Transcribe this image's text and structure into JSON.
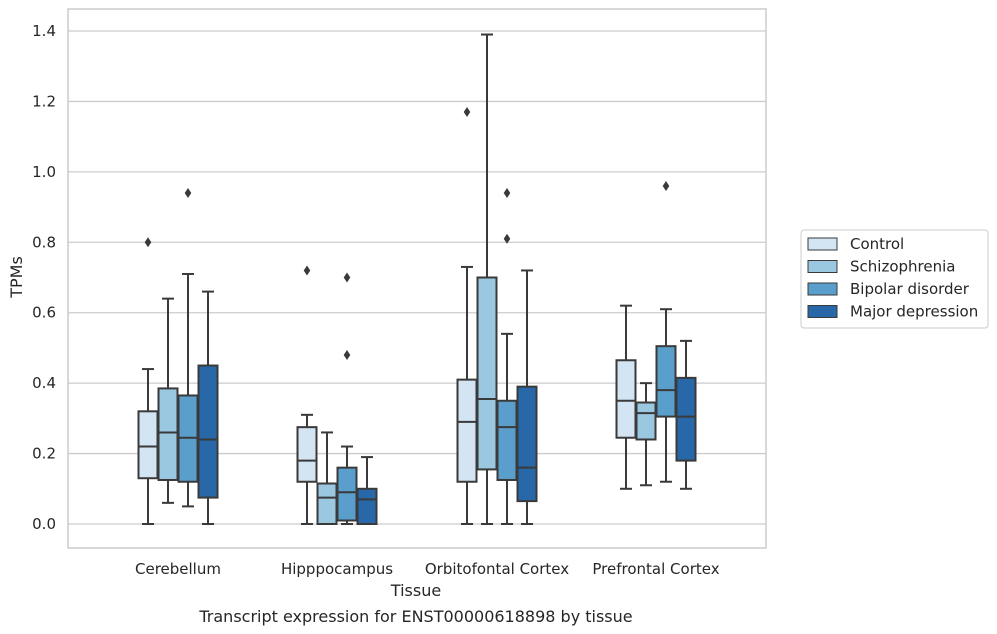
{
  "chart_data": {
    "type": "box",
    "caption": "Transcript expression for ENST00000618898 by tissue",
    "xlabel": "Tissue",
    "ylabel": "TPMs",
    "ylim": [
      -0.065,
      1.455
    ],
    "yticks": [
      0.0,
      0.2,
      0.4,
      0.6,
      0.8,
      1.0,
      1.2,
      1.4
    ],
    "grid": true,
    "legend_position": "right",
    "categories": [
      "Cerebellum",
      "Hipppocampus",
      "Orbitofontal Cortex",
      "Prefrontal Cortex"
    ],
    "series": [
      {
        "name": "Control",
        "color": "#d3e4f3",
        "boxes": [
          {
            "whisker_low": 0.0,
            "q1": 0.13,
            "median": 0.22,
            "q3": 0.32,
            "whisker_high": 0.44,
            "outliers": [
              0.8
            ]
          },
          {
            "whisker_low": 0.0,
            "q1": 0.12,
            "median": 0.18,
            "q3": 0.275,
            "whisker_high": 0.31,
            "outliers": [
              0.72
            ]
          },
          {
            "whisker_low": 0.0,
            "q1": 0.12,
            "median": 0.29,
            "q3": 0.41,
            "whisker_high": 0.73,
            "outliers": [
              1.17
            ]
          },
          {
            "whisker_low": 0.1,
            "q1": 0.245,
            "median": 0.35,
            "q3": 0.465,
            "whisker_high": 0.62,
            "outliers": []
          }
        ]
      },
      {
        "name": "Schizophrenia",
        "color": "#9ac8e0",
        "boxes": [
          {
            "whisker_low": 0.06,
            "q1": 0.125,
            "median": 0.26,
            "q3": 0.385,
            "whisker_high": 0.64,
            "outliers": []
          },
          {
            "whisker_low": 0.0,
            "q1": 0.0,
            "median": 0.075,
            "q3": 0.115,
            "whisker_high": 0.26,
            "outliers": []
          },
          {
            "whisker_low": 0.0,
            "q1": 0.155,
            "median": 0.355,
            "q3": 0.7,
            "whisker_high": 1.39,
            "outliers": []
          },
          {
            "whisker_low": 0.11,
            "q1": 0.24,
            "median": 0.315,
            "q3": 0.345,
            "whisker_high": 0.4,
            "outliers": []
          }
        ]
      },
      {
        "name": "Bipolar disorder",
        "color": "#5a9fcb",
        "boxes": [
          {
            "whisker_low": 0.05,
            "q1": 0.12,
            "median": 0.245,
            "q3": 0.365,
            "whisker_high": 0.71,
            "outliers": [
              0.94
            ]
          },
          {
            "whisker_low": 0.0,
            "q1": 0.01,
            "median": 0.09,
            "q3": 0.16,
            "whisker_high": 0.22,
            "outliers": [
              0.48,
              0.7
            ]
          },
          {
            "whisker_low": 0.0,
            "q1": 0.125,
            "median": 0.275,
            "q3": 0.35,
            "whisker_high": 0.54,
            "outliers": [
              0.81,
              0.94
            ]
          },
          {
            "whisker_low": 0.12,
            "q1": 0.305,
            "median": 0.38,
            "q3": 0.505,
            "whisker_high": 0.61,
            "outliers": [
              0.96
            ]
          }
        ]
      },
      {
        "name": "Major depression",
        "color": "#2868a8",
        "boxes": [
          {
            "whisker_low": 0.0,
            "q1": 0.075,
            "median": 0.24,
            "q3": 0.45,
            "whisker_high": 0.66,
            "outliers": []
          },
          {
            "whisker_low": 0.0,
            "q1": 0.0,
            "median": 0.07,
            "q3": 0.1,
            "whisker_high": 0.19,
            "outliers": []
          },
          {
            "whisker_low": 0.0,
            "q1": 0.065,
            "median": 0.16,
            "q3": 0.39,
            "whisker_high": 0.72,
            "outliers": []
          },
          {
            "whisker_low": 0.1,
            "q1": 0.18,
            "median": 0.305,
            "q3": 0.415,
            "whisker_high": 0.52,
            "outliers": []
          }
        ]
      }
    ]
  }
}
